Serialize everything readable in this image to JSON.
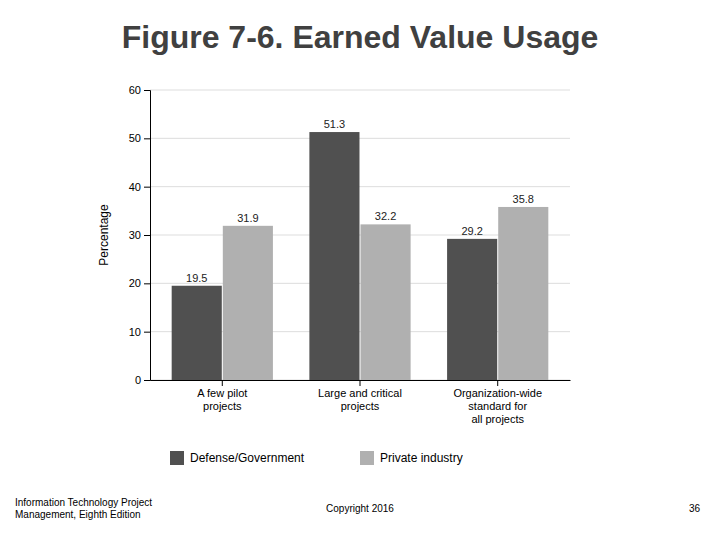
{
  "chart_data": {
    "type": "bar",
    "title": "Figure 7-6. Earned Value Usage",
    "categories": [
      "A few pilot\nprojects",
      "Large and critical\nprojects",
      "Organization-wide\nstandard for\nall projects"
    ],
    "series": [
      {
        "name": "Defense/Government",
        "color": "#505050",
        "values": [
          19.5,
          51.3,
          29.2
        ]
      },
      {
        "name": "Private industry",
        "color": "#b0b0b0",
        "values": [
          31.9,
          32.2,
          35.8
        ]
      }
    ],
    "ylabel": "Percentage",
    "ylim": [
      0,
      60
    ],
    "yticks": [
      0,
      10,
      20,
      30,
      40,
      50,
      60
    ],
    "grid": true,
    "data_labels": true,
    "legend": "bottom",
    "annotations": [
      "Information Technology Project\nManagement, Eighth Edition",
      "Copyright 2016",
      "36"
    ]
  }
}
